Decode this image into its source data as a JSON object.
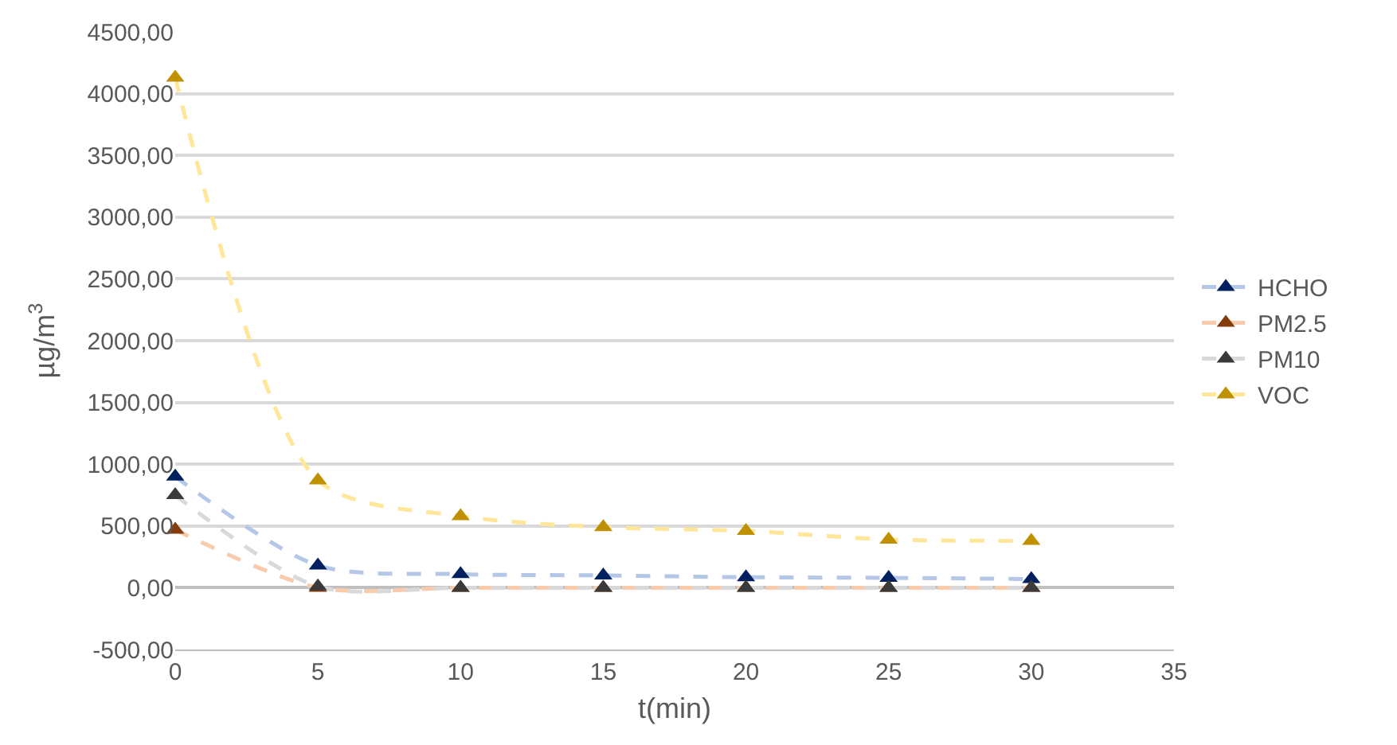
{
  "chart_data": {
    "type": "line",
    "xlabel": "t(min)",
    "ylabel": "µg/m$^{3}$",
    "x": [
      0,
      5,
      10,
      15,
      20,
      25,
      30
    ],
    "series": [
      {
        "name": "HCHO",
        "color": "#b4c7e7",
        "colors": [
          "#002060",
          "#002060",
          "#002060",
          "#002060",
          "#002060",
          "#002060",
          "#002060"
        ],
        "values": [
          900,
          180,
          110,
          100,
          85,
          80,
          70
        ]
      },
      {
        "name": "PM2.5",
        "color": "#f8cbad",
        "colors": [
          "#843c0c",
          "#843c0c",
          "#843c0c",
          "#843c0c",
          "#843c0c",
          "#843c0c",
          "#843c0c"
        ],
        "values": [
          470,
          0,
          0,
          0,
          0,
          0,
          0
        ]
      },
      {
        "name": "PM10",
        "color": "#d9d9d9",
        "colors": [
          "#3a3a3a",
          "#3a3a3a",
          "#3a3a3a",
          "#3a3a3a",
          "#3a3a3a",
          "#3a3a3a",
          "#3a3a3a"
        ],
        "values": [
          750,
          10,
          0,
          0,
          0,
          0,
          0
        ]
      },
      {
        "name": "VOC",
        "color": "#ffe699",
        "colors": [
          "#bf9000",
          "#bf9000",
          "#bf9000",
          "#bf9000",
          "#bf9000",
          "#bf9000",
          "#bf9000"
        ],
        "values": [
          4130,
          870,
          580,
          490,
          460,
          390,
          380
        ]
      }
    ],
    "xlim": [
      0,
      35
    ],
    "xticks": [
      0,
      5,
      10,
      15,
      20,
      25,
      30,
      35
    ],
    "ylim": [
      -500,
      4500
    ],
    "yticks": [
      {
        "value": -500,
        "label": "-500,00"
      },
      {
        "value": 0,
        "label": "0,00"
      },
      {
        "value": 500,
        "label": "500,00"
      },
      {
        "value": 1000,
        "label": "1000,00"
      },
      {
        "value": 1500,
        "label": "1500,00"
      },
      {
        "value": 2000,
        "label": "2000,00"
      },
      {
        "value": 2500,
        "label": "2500,00"
      },
      {
        "value": 3000,
        "label": "3000,00"
      },
      {
        "value": 3500,
        "label": "3500,00"
      },
      {
        "value": 4000,
        "label": "4000,00"
      },
      {
        "value": 4500,
        "label": "4500,00"
      }
    ],
    "grid": "y",
    "legend": "right",
    "marker": "triangle",
    "line_style": "dashed"
  }
}
